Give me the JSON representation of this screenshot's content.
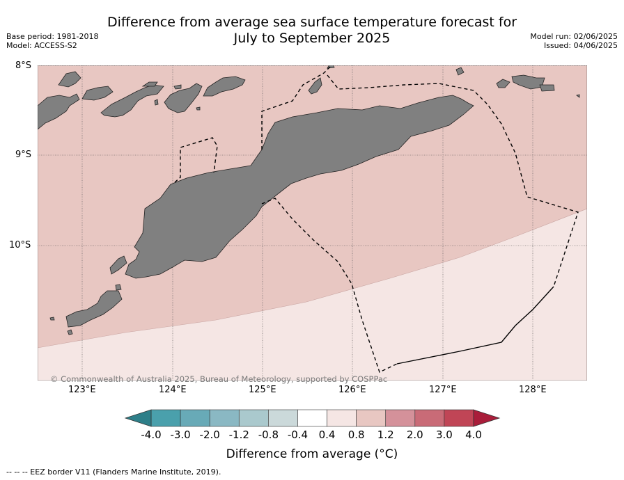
{
  "title_line1": "Difference from average sea surface temperature forecast for",
  "title_line2": "July to September 2025",
  "base_period": "Base period: 1981-2018",
  "model": "Model: ACCESS-S2",
  "model_run": "Model run: 02/06/2025",
  "issued": "Issued: 04/06/2025",
  "lat_labels": [
    "8°S",
    "9°S",
    "10°S"
  ],
  "lon_labels": [
    "123°E",
    "124°E",
    "125°E",
    "126°E",
    "127°E",
    "128°E"
  ],
  "copyright": "© Commonwealth of Australia 2025, Bureau of Meteorology, supported by COSPPac",
  "colorbar": {
    "ticks": [
      "-4.0",
      "-3.0",
      "-2.0",
      "-1.2",
      "-0.8",
      "-0.4",
      "0.4",
      "0.8",
      "1.2",
      "2.0",
      "3.0",
      "4.0"
    ],
    "colors": [
      "#2e7f89",
      "#4aa0ac",
      "#68aab7",
      "#8ab8c3",
      "#aac9cd",
      "#cbd9da",
      "#ffffff",
      "#f5e6e4",
      "#e8c7c2",
      "#d4919a",
      "#c96b77",
      "#c04556",
      "#a91d3a"
    ],
    "title": "Difference from average (°C)"
  },
  "map_colors": {
    "anomaly_high": "#e8c7c2",
    "anomaly_low": "#f5e6e4",
    "land": "#808080"
  },
  "legend_note": "--  --  -- EEZ border V11 (Flanders Marine Institute, 2019)."
}
